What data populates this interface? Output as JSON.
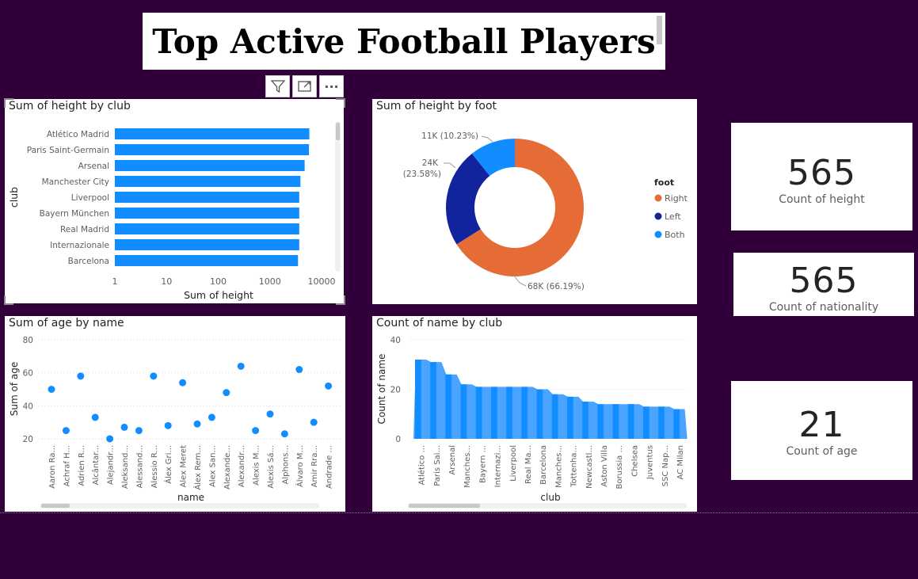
{
  "title": "Top Active Football Players",
  "toolbar": {
    "icons": [
      "filter-icon",
      "focus-mode-icon",
      "more-options-icon"
    ],
    "more_label": "···"
  },
  "cards": [
    {
      "value": "565",
      "label": "Count of height"
    },
    {
      "value": "565",
      "label": "Count of nationality"
    },
    {
      "value": "21",
      "label": "Count of age"
    }
  ],
  "chart_data": [
    {
      "type": "bar",
      "orientation": "horizontal",
      "title": "Sum of height by club",
      "xlabel": "Sum of height",
      "ylabel": "club",
      "xscale": "log",
      "xlim": [
        1,
        10000
      ],
      "xticks": [
        "1",
        "10",
        "100",
        "1000",
        "10000"
      ],
      "categories": [
        "Atlético Madrid",
        "Paris Saint-Germain",
        "Arsenal",
        "Manchester City",
        "Liverpool",
        "Bayern München",
        "Real Madrid",
        "Internazionale",
        "Barcelona"
      ],
      "values": [
        5800,
        5700,
        4700,
        3900,
        3700,
        3700,
        3700,
        3700,
        3500
      ],
      "color": "#118dff"
    },
    {
      "type": "pie",
      "donut": true,
      "title": "Sum of height by foot",
      "legend_title": "foot",
      "legend_position": "right",
      "slices": [
        {
          "name": "Right",
          "value": 68,
          "label": "68K (66.19%)",
          "color": "#e66c37"
        },
        {
          "name": "Left",
          "value": 24,
          "label": "24K\n(23.58%)",
          "color": "#12239e"
        },
        {
          "name": "Both",
          "value": 11,
          "label": "11K (10.23%)",
          "color": "#118dff"
        }
      ]
    },
    {
      "type": "scatter",
      "title": "Sum of age by name",
      "xlabel": "name",
      "ylabel": "Sum of age",
      "ylim": [
        20,
        80
      ],
      "yticks": [
        "20",
        "40",
        "60",
        "80"
      ],
      "categories": [
        "Aaron Ra...",
        "Achraf H...",
        "Adrien R...",
        "Alcântar...",
        "Alejandr...",
        "Aleksand...",
        "Alessand...",
        "Alessio R...",
        "Álex Gri...",
        "Alex Meret",
        "Álex Rem...",
        "Alex San...",
        "Alexande...",
        "Alexandr...",
        "Alexis M...",
        "Alexis Sá...",
        "Alphons...",
        "Álvaro M...",
        "Amir Rra...",
        "Andrade ..."
      ],
      "values": [
        50,
        25,
        58,
        33,
        20,
        27,
        25,
        58,
        28,
        54,
        29,
        33,
        48,
        64,
        25,
        35,
        23,
        62,
        30,
        52
      ],
      "color": "#118dff"
    },
    {
      "type": "area",
      "title": "Count of name by club",
      "xlabel": "club",
      "ylabel": "Count of name",
      "ylim": [
        0,
        40
      ],
      "yticks": [
        "0",
        "20",
        "40"
      ],
      "categories": [
        "Atlético ...",
        "Paris Sai...",
        "Arsenal",
        "Manches...",
        "Bayern ...",
        "Internazi...",
        "Liverpool",
        "Real Ma...",
        "Barcelona",
        "Manches...",
        "Tottenha...",
        "Newcastl...",
        "Aston Villa",
        "Borussia ...",
        "Chelsea",
        "Juventus",
        "SSC Nap...",
        "AC Milan"
      ],
      "values": [
        32,
        31,
        26,
        22,
        21,
        21,
        21,
        21,
        20,
        18,
        17,
        15,
        14,
        14,
        14,
        13,
        13,
        12
      ],
      "color": "#118dff"
    }
  ]
}
